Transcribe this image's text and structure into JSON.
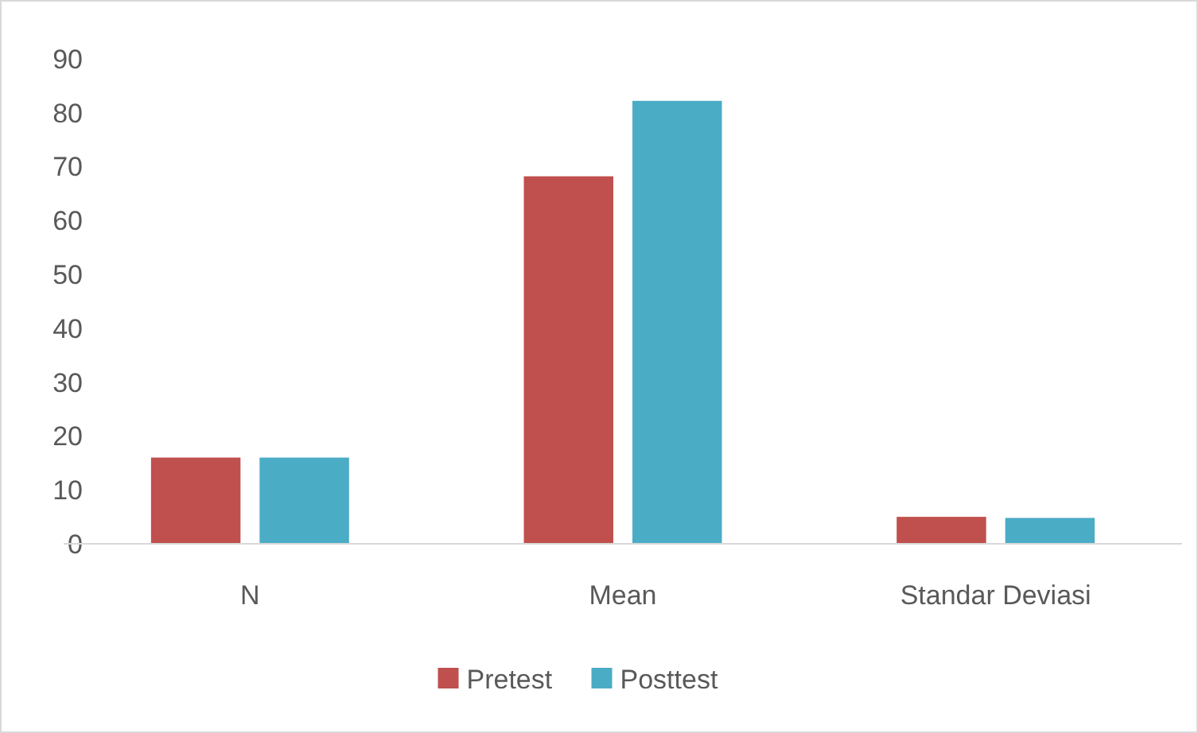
{
  "chart_data": {
    "type": "bar",
    "categories": [
      "N",
      "Mean",
      "Standar Deviasi"
    ],
    "series": [
      {
        "name": "Pretest",
        "color": "#c0504d",
        "values": [
          16,
          68.2,
          5
        ]
      },
      {
        "name": "Posttest",
        "color": "#4bacc6",
        "values": [
          16,
          82.2,
          4.8
        ]
      }
    ],
    "ylim": [
      0,
      90
    ],
    "yticks": [
      0,
      10,
      20,
      30,
      40,
      50,
      60,
      70,
      80,
      90
    ],
    "grid": false,
    "legend": "bottom"
  }
}
